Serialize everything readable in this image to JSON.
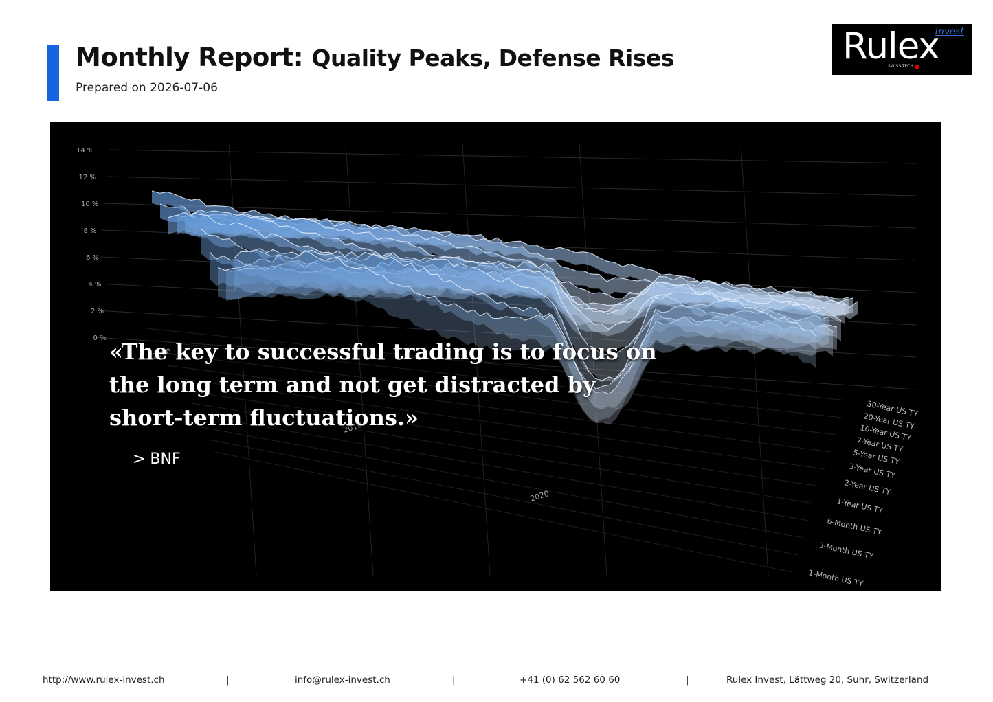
{
  "header": {
    "title_prefix": "Monthly Report:",
    "title_rest": "Quality Peaks, Defense Rises",
    "date": "Prepared on 2026-07-06"
  },
  "logo": {
    "word": "Rulex",
    "small": "invest",
    "tagline": "SWISS-TECH"
  },
  "hero": {
    "quote": "«The key to successful trading is to focus on the long term and not get distracted by short-term fluctuations.»",
    "author": "> BNF",
    "y_ticks": [
      "14 %",
      "12 %",
      "10 %",
      "8 %",
      "6 %",
      "4 %",
      "2 %",
      "0 %"
    ],
    "year_labels": [
      "2000",
      "2010",
      "2020"
    ],
    "series_labels": [
      "30-Year US TY",
      "20-Year US TY",
      "10-Year US TY",
      "7-Year US TY",
      "5-Year US TY",
      "3-Year US TY",
      "2-Year US TY",
      "1-Year US TY",
      "6-Month US TY",
      "3-Month US TY",
      "1-Month US TY"
    ]
  },
  "footer": {
    "website": "http://www.rulex-invest.ch",
    "email": "info@rulex-invest.ch",
    "phone": "+41 (0) 62 562 60 60",
    "address": "Rulex Invest, Lättweg 20, Suhr, Switzerland",
    "separator": "|"
  },
  "colors": {
    "accent": "#1565e0",
    "ribbon": "#6fa6e6"
  }
}
